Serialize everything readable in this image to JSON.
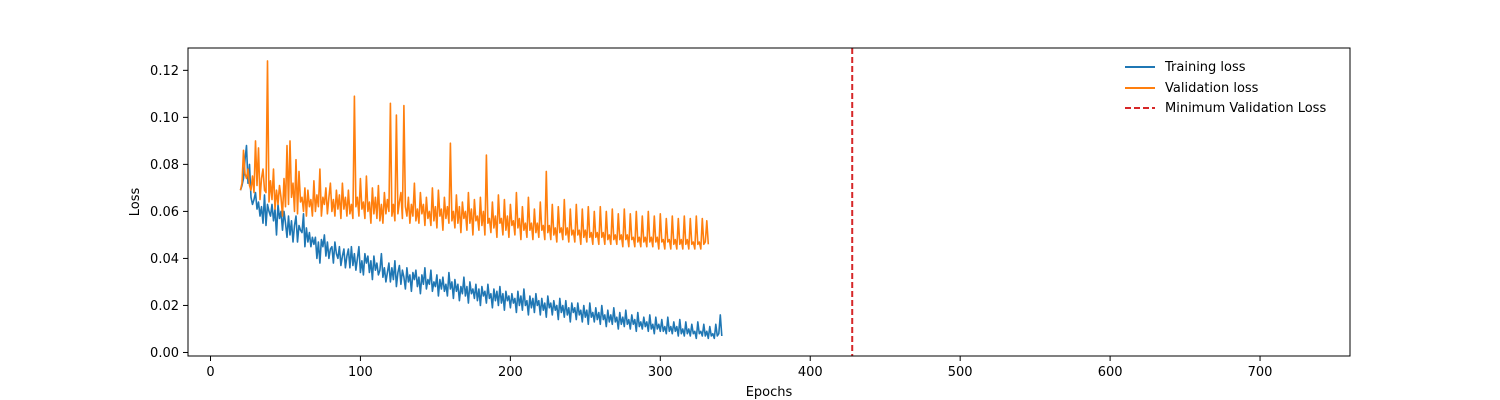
{
  "chart_data": {
    "type": "line",
    "title": "",
    "xlabel": "Epochs",
    "ylabel": "Loss",
    "xlim": [
      -15,
      760
    ],
    "ylim": [
      -0.0015,
      0.1295
    ],
    "xticks": [
      0,
      100,
      200,
      300,
      400,
      500,
      600,
      700
    ],
    "yticks": [
      0.0,
      0.02,
      0.04,
      0.06,
      0.08,
      0.1,
      0.12
    ],
    "ytick_labels": [
      "0.00",
      "0.02",
      "0.04",
      "0.06",
      "0.08",
      "0.10",
      "0.12"
    ],
    "grid": false,
    "legend_position": "top-right",
    "legend_frame": false,
    "series": [
      {
        "name": "Training loss",
        "color": "#1f77b4",
        "x_start": 20,
        "x_step": 1,
        "values": [
          0.069,
          0.071,
          0.074,
          0.082,
          0.088,
          0.072,
          0.08,
          0.066,
          0.063,
          0.065,
          0.068,
          0.061,
          0.064,
          0.058,
          0.062,
          0.055,
          0.067,
          0.054,
          0.063,
          0.06,
          0.058,
          0.063,
          0.056,
          0.061,
          0.05,
          0.063,
          0.057,
          0.06,
          0.052,
          0.06,
          0.055,
          0.049,
          0.058,
          0.05,
          0.056,
          0.047,
          0.054,
          0.058,
          0.047,
          0.054,
          0.052,
          0.051,
          0.059,
          0.045,
          0.053,
          0.047,
          0.051,
          0.045,
          0.049,
          0.046,
          0.049,
          0.04,
          0.047,
          0.038,
          0.048,
          0.045,
          0.05,
          0.041,
          0.047,
          0.04,
          0.044,
          0.045,
          0.038,
          0.047,
          0.042,
          0.04,
          0.045,
          0.037,
          0.041,
          0.044,
          0.036,
          0.041,
          0.044,
          0.036,
          0.045,
          0.037,
          0.042,
          0.035,
          0.04,
          0.045,
          0.034,
          0.039,
          0.033,
          0.042,
          0.038,
          0.041,
          0.034,
          0.039,
          0.031,
          0.041,
          0.035,
          0.038,
          0.033,
          0.035,
          0.042,
          0.032,
          0.036,
          0.03,
          0.034,
          0.038,
          0.03,
          0.036,
          0.031,
          0.039,
          0.028,
          0.034,
          0.037,
          0.029,
          0.035,
          0.032,
          0.027,
          0.036,
          0.03,
          0.033,
          0.026,
          0.034,
          0.031,
          0.035,
          0.028,
          0.032,
          0.025,
          0.033,
          0.029,
          0.036,
          0.027,
          0.031,
          0.029,
          0.035,
          0.026,
          0.03,
          0.028,
          0.033,
          0.024,
          0.031,
          0.027,
          0.032,
          0.026,
          0.029,
          0.024,
          0.034,
          0.027,
          0.03,
          0.023,
          0.031,
          0.026,
          0.029,
          0.022,
          0.028,
          0.025,
          0.032,
          0.024,
          0.028,
          0.021,
          0.03,
          0.025,
          0.027,
          0.023,
          0.029,
          0.022,
          0.027,
          0.02,
          0.028,
          0.024,
          0.026,
          0.021,
          0.029,
          0.023,
          0.025,
          0.019,
          0.027,
          0.022,
          0.026,
          0.02,
          0.028,
          0.021,
          0.025,
          0.018,
          0.026,
          0.022,
          0.024,
          0.019,
          0.025,
          0.021,
          0.023,
          0.017,
          0.026,
          0.02,
          0.024,
          0.018,
          0.027,
          0.02,
          0.022,
          0.016,
          0.024,
          0.019,
          0.023,
          0.017,
          0.025,
          0.02,
          0.022,
          0.016,
          0.023,
          0.018,
          0.021,
          0.015,
          0.024,
          0.019,
          0.021,
          0.016,
          0.022,
          0.018,
          0.02,
          0.014,
          0.023,
          0.017,
          0.02,
          0.015,
          0.022,
          0.016,
          0.019,
          0.013,
          0.021,
          0.017,
          0.019,
          0.014,
          0.021,
          0.016,
          0.018,
          0.013,
          0.02,
          0.015,
          0.018,
          0.012,
          0.021,
          0.015,
          0.017,
          0.013,
          0.019,
          0.014,
          0.017,
          0.012,
          0.02,
          0.014,
          0.016,
          0.011,
          0.018,
          0.013,
          0.016,
          0.012,
          0.019,
          0.013,
          0.015,
          0.01,
          0.017,
          0.012,
          0.015,
          0.011,
          0.018,
          0.012,
          0.014,
          0.01,
          0.016,
          0.012,
          0.014,
          0.009,
          0.017,
          0.011,
          0.013,
          0.01,
          0.015,
          0.011,
          0.013,
          0.009,
          0.016,
          0.01,
          0.012,
          0.008,
          0.015,
          0.01,
          0.012,
          0.009,
          0.014,
          0.009,
          0.011,
          0.008,
          0.015,
          0.009,
          0.011,
          0.008,
          0.013,
          0.009,
          0.011,
          0.007,
          0.014,
          0.008,
          0.01,
          0.007,
          0.013,
          0.008,
          0.01,
          0.007,
          0.012,
          0.008,
          0.009,
          0.006,
          0.013,
          0.008,
          0.009,
          0.007,
          0.012,
          0.007,
          0.009,
          0.006,
          0.011,
          0.007,
          0.008,
          0.006,
          0.012,
          0.007,
          0.008,
          0.016,
          0.007
        ]
      },
      {
        "name": "Validation loss",
        "color": "#ff7f0e",
        "x_start": 20,
        "x_step": 1,
        "values": [
          0.069,
          0.072,
          0.086,
          0.076,
          0.074,
          0.078,
          0.071,
          0.069,
          0.075,
          0.068,
          0.09,
          0.071,
          0.087,
          0.065,
          0.074,
          0.078,
          0.069,
          0.068,
          0.124,
          0.064,
          0.073,
          0.065,
          0.078,
          0.061,
          0.069,
          0.063,
          0.071,
          0.066,
          0.058,
          0.074,
          0.062,
          0.088,
          0.063,
          0.09,
          0.066,
          0.072,
          0.06,
          0.082,
          0.059,
          0.077,
          0.064,
          0.066,
          0.06,
          0.07,
          0.058,
          0.069,
          0.062,
          0.065,
          0.058,
          0.073,
          0.06,
          0.067,
          0.062,
          0.078,
          0.058,
          0.066,
          0.063,
          0.07,
          0.059,
          0.066,
          0.072,
          0.06,
          0.065,
          0.058,
          0.069,
          0.061,
          0.067,
          0.057,
          0.072,
          0.061,
          0.066,
          0.058,
          0.069,
          0.059,
          0.063,
          0.057,
          0.109,
          0.062,
          0.066,
          0.058,
          0.074,
          0.061,
          0.064,
          0.057,
          0.075,
          0.06,
          0.064,
          0.055,
          0.07,
          0.059,
          0.066,
          0.057,
          0.071,
          0.056,
          0.063,
          0.055,
          0.068,
          0.059,
          0.065,
          0.06,
          0.106,
          0.058,
          0.063,
          0.056,
          0.101,
          0.059,
          0.064,
          0.068,
          0.057,
          0.105,
          0.062,
          0.058,
          0.066,
          0.055,
          0.063,
          0.058,
          0.072,
          0.056,
          0.061,
          0.055,
          0.068,
          0.059,
          0.063,
          0.054,
          0.066,
          0.057,
          0.06,
          0.054,
          0.07,
          0.056,
          0.062,
          0.053,
          0.069,
          0.058,
          0.061,
          0.052,
          0.066,
          0.057,
          0.062,
          0.055,
          0.089,
          0.056,
          0.06,
          0.053,
          0.067,
          0.055,
          0.062,
          0.051,
          0.064,
          0.057,
          0.06,
          0.052,
          0.068,
          0.055,
          0.061,
          0.05,
          0.065,
          0.056,
          0.058,
          0.052,
          0.066,
          0.054,
          0.06,
          0.05,
          0.084,
          0.055,
          0.057,
          0.051,
          0.064,
          0.053,
          0.058,
          0.049,
          0.067,
          0.055,
          0.057,
          0.05,
          0.065,
          0.052,
          0.058,
          0.049,
          0.063,
          0.054,
          0.056,
          0.05,
          0.068,
          0.053,
          0.057,
          0.048,
          0.062,
          0.052,
          0.055,
          0.049,
          0.066,
          0.052,
          0.055,
          0.048,
          0.061,
          0.051,
          0.055,
          0.049,
          0.064,
          0.052,
          0.054,
          0.048,
          0.077,
          0.051,
          0.054,
          0.048,
          0.063,
          0.05,
          0.053,
          0.047,
          0.062,
          0.051,
          0.053,
          0.048,
          0.065,
          0.05,
          0.053,
          0.047,
          0.061,
          0.05,
          0.052,
          0.047,
          0.063,
          0.05,
          0.052,
          0.046,
          0.061,
          0.049,
          0.052,
          0.047,
          0.062,
          0.049,
          0.051,
          0.046,
          0.06,
          0.049,
          0.051,
          0.046,
          0.062,
          0.049,
          0.051,
          0.046,
          0.06,
          0.048,
          0.05,
          0.046,
          0.061,
          0.048,
          0.05,
          0.046,
          0.059,
          0.048,
          0.05,
          0.045,
          0.061,
          0.048,
          0.05,
          0.045,
          0.059,
          0.048,
          0.049,
          0.045,
          0.06,
          0.047,
          0.049,
          0.045,
          0.058,
          0.047,
          0.049,
          0.045,
          0.06,
          0.047,
          0.049,
          0.045,
          0.058,
          0.047,
          0.049,
          0.044,
          0.059,
          0.047,
          0.048,
          0.044,
          0.057,
          0.047,
          0.048,
          0.044,
          0.058,
          0.046,
          0.048,
          0.044,
          0.057,
          0.046,
          0.048,
          0.044,
          0.058,
          0.046,
          0.048,
          0.044,
          0.057,
          0.046,
          0.047,
          0.044,
          0.058,
          0.046,
          0.047,
          0.044,
          0.057,
          0.046,
          0.047,
          0.056,
          0.046
        ]
      },
      {
        "name": "Minimum Validation Loss",
        "color": "#d62728",
        "style": "dashed",
        "type": "vline",
        "x": 428
      }
    ]
  }
}
